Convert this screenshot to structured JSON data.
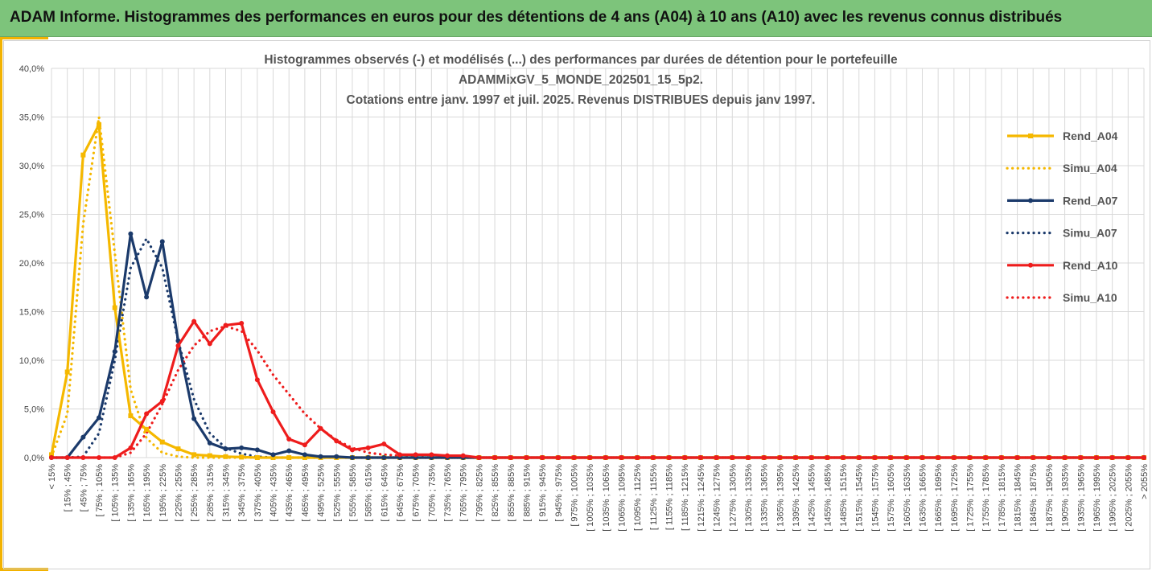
{
  "header": {
    "title": "ADAM Informe. Histogrammes des performances en euros pour des détentions de 4 ans (A04) à 10 ans (A10) avec les revenus connus distribués"
  },
  "colors": {
    "banner": "#7dc47b",
    "accent": "#f2b200",
    "a04": "#f5b800",
    "a07": "#1b3a6b",
    "a10": "#ee1c1c",
    "grid": "#d9d9d9"
  },
  "chart_data": {
    "type": "line",
    "title": "Histogrammes observés (-) et modélisés (...) des performances par durées de détention pour le portefeuille",
    "title_lines": [
      "Histogrammes observés (-) et modélisés (...) des performances par durées de détention pour le portefeuille",
      "ADAMMixGV_5_MONDE_202501_15_5p2.",
      "Cotations entre janv. 1997 et juil. 2025. Revenus DISTRIBUES depuis janv 1997."
    ],
    "xlabel": "",
    "ylabel": "",
    "ylim": [
      0,
      40
    ],
    "ytick_labels": [
      "0,0%",
      "5,0%",
      "10,0%",
      "15,0%",
      "20,0%",
      "25,0%",
      "30,0%",
      "35,0%",
      "40,0%"
    ],
    "grid": true,
    "legend_position": "right",
    "categories": [
      "< 15%",
      "[ 15% ; 45%",
      "[ 45% ; 75%",
      "[ 75% ; 105%",
      "[ 105% ; 135%",
      "[ 135% ; 165%",
      "[ 165% ; 195%",
      "[ 195% ; 225%",
      "[ 225% ; 255%",
      "[ 255% ; 285%",
      "[ 285% ; 315%",
      "[ 315% ; 345%",
      "[ 345% ; 375%",
      "[ 375% ; 405%",
      "[ 405% ; 435%",
      "[ 435% ; 465%",
      "[ 465% ; 495%",
      "[ 495% ; 525%",
      "[ 525% ; 555%",
      "[ 555% ; 585%",
      "[ 585% ; 615%",
      "[ 615% ; 645%",
      "[ 645% ; 675%",
      "[ 675% ; 705%",
      "[ 705% ; 735%",
      "[ 735% ; 765%",
      "[ 765% ; 795%",
      "[ 795% ; 825%",
      "[ 825% ; 855%",
      "[ 855% ; 885%",
      "[ 885% ; 915%",
      "[ 915% ; 945%",
      "[ 945% ; 975%",
      "[ 975% ; 1005%",
      "[ 1005% ; 1035%",
      "[ 1035% ; 1065%",
      "[ 1065% ; 1095%",
      "[ 1095% ; 1125%",
      "[ 1125% ; 1155%",
      "[ 1155% ; 1185%",
      "[ 1185% ; 1215%",
      "[ 1215% ; 1245%",
      "[ 1245% ; 1275%",
      "[ 1275% ; 1305%",
      "[ 1305% ; 1335%",
      "[ 1335% ; 1365%",
      "[ 1365% ; 1395%",
      "[ 1395% ; 1425%",
      "[ 1425% ; 1455%",
      "[ 1455% ; 1485%",
      "[ 1485% ; 1515%",
      "[ 1515% ; 1545%",
      "[ 1545% ; 1575%",
      "[ 1575% ; 1605%",
      "[ 1605% ; 1635%",
      "[ 1635% ; 1665%",
      "[ 1665% ; 1695%",
      "[ 1695% ; 1725%",
      "[ 1725% ; 1755%",
      "[ 1755% ; 1785%",
      "[ 1785% ; 1815%",
      "[ 1815% ; 1845%",
      "[ 1845% ; 1875%",
      "[ 1875% ; 1905%",
      "[ 1905% ; 1935%",
      "[ 1935% ; 1965%",
      "[ 1965% ; 1995%",
      "[ 1995% ; 2025%",
      "[ 2025% ; 2055%",
      "> 2055%"
    ],
    "series": [
      {
        "name": "Rend_A04",
        "style": "solid",
        "color": "#f5b800",
        "markers": true,
        "values": [
          0.3,
          8.8,
          31.1,
          34.2,
          15.4,
          4.3,
          2.9,
          1.6,
          0.9,
          0.3,
          0.2,
          0.1,
          0.05,
          0,
          0,
          0,
          0,
          0,
          0,
          0,
          0,
          0,
          0,
          0,
          0,
          0,
          0,
          0,
          0,
          0,
          0,
          0,
          0,
          0,
          0,
          0,
          0,
          0,
          0,
          0,
          0,
          0,
          0,
          0,
          0,
          0,
          0,
          0,
          0,
          0,
          0,
          0,
          0,
          0,
          0,
          0,
          0,
          0,
          0,
          0,
          0,
          0,
          0,
          0,
          0,
          0,
          0,
          0,
          0,
          0
        ]
      },
      {
        "name": "Simu_A04",
        "style": "dotted",
        "color": "#f5b800",
        "markers": false,
        "values": [
          0.1,
          4.5,
          24.0,
          35.0,
          21.0,
          7.0,
          2.0,
          0.5,
          0.1,
          0,
          0,
          0,
          0,
          0,
          0,
          0,
          0,
          0,
          0,
          0,
          0,
          0,
          0,
          0,
          0,
          0,
          0,
          0,
          0,
          0,
          0,
          0,
          0,
          0,
          0,
          0,
          0,
          0,
          0,
          0,
          0,
          0,
          0,
          0,
          0,
          0,
          0,
          0,
          0,
          0,
          0,
          0,
          0,
          0,
          0,
          0,
          0,
          0,
          0,
          0,
          0,
          0,
          0,
          0,
          0,
          0,
          0,
          0,
          0,
          0
        ]
      },
      {
        "name": "Rend_A07",
        "style": "solid",
        "color": "#1b3a6b",
        "markers": true,
        "values": [
          0,
          0,
          2.1,
          4.1,
          10.9,
          23.0,
          16.5,
          22.2,
          12.0,
          4.0,
          1.5,
          0.9,
          1.0,
          0.8,
          0.3,
          0.7,
          0.3,
          0.1,
          0.1,
          0,
          0,
          0,
          0,
          0,
          0,
          0,
          0,
          0,
          0,
          0,
          0,
          0,
          0,
          0,
          0,
          0,
          0,
          0,
          0,
          0,
          0,
          0,
          0,
          0,
          0,
          0,
          0,
          0,
          0,
          0,
          0,
          0,
          0,
          0,
          0,
          0,
          0,
          0,
          0,
          0,
          0,
          0,
          0,
          0,
          0,
          0,
          0,
          0,
          0,
          0
        ]
      },
      {
        "name": "Simu_A07",
        "style": "dotted",
        "color": "#1b3a6b",
        "markers": false,
        "values": [
          0,
          0,
          0.1,
          2.5,
          10.0,
          19.5,
          22.5,
          19.5,
          12.0,
          6.0,
          2.5,
          1.0,
          0.4,
          0.1,
          0,
          0,
          0,
          0,
          0,
          0,
          0,
          0,
          0,
          0,
          0,
          0,
          0,
          0,
          0,
          0,
          0,
          0,
          0,
          0,
          0,
          0,
          0,
          0,
          0,
          0,
          0,
          0,
          0,
          0,
          0,
          0,
          0,
          0,
          0,
          0,
          0,
          0,
          0,
          0,
          0,
          0,
          0,
          0,
          0,
          0,
          0,
          0,
          0,
          0,
          0,
          0,
          0,
          0,
          0,
          0
        ]
      },
      {
        "name": "Rend_A10",
        "style": "solid",
        "color": "#ee1c1c",
        "markers": true,
        "values": [
          0,
          0,
          0,
          0,
          0,
          1.0,
          4.5,
          5.8,
          11.5,
          14.0,
          11.7,
          13.6,
          13.8,
          8.0,
          4.7,
          1.9,
          1.3,
          3.0,
          1.7,
          0.8,
          1.0,
          1.4,
          0.3,
          0.3,
          0.3,
          0.2,
          0.2,
          0,
          0,
          0,
          0,
          0,
          0,
          0,
          0,
          0,
          0,
          0,
          0,
          0,
          0,
          0,
          0,
          0,
          0,
          0,
          0,
          0,
          0,
          0,
          0,
          0,
          0,
          0,
          0,
          0,
          0,
          0,
          0,
          0,
          0,
          0,
          0,
          0,
          0,
          0,
          0,
          0,
          0,
          0
        ]
      },
      {
        "name": "Simu_A10",
        "style": "dotted",
        "color": "#ee1c1c",
        "markers": false,
        "values": [
          0,
          0,
          0,
          0,
          0,
          0.5,
          2.5,
          5.5,
          9.0,
          11.5,
          13.0,
          13.5,
          13.0,
          11.0,
          8.5,
          6.5,
          4.5,
          3.0,
          1.8,
          1.0,
          0.5,
          0.3,
          0.2,
          0.1,
          0,
          0,
          0,
          0,
          0,
          0,
          0,
          0,
          0,
          0,
          0,
          0,
          0,
          0,
          0,
          0,
          0,
          0,
          0,
          0,
          0,
          0,
          0,
          0,
          0,
          0,
          0,
          0,
          0,
          0,
          0,
          0,
          0,
          0,
          0,
          0,
          0,
          0,
          0,
          0,
          0,
          0,
          0,
          0,
          0,
          0
        ]
      }
    ]
  }
}
